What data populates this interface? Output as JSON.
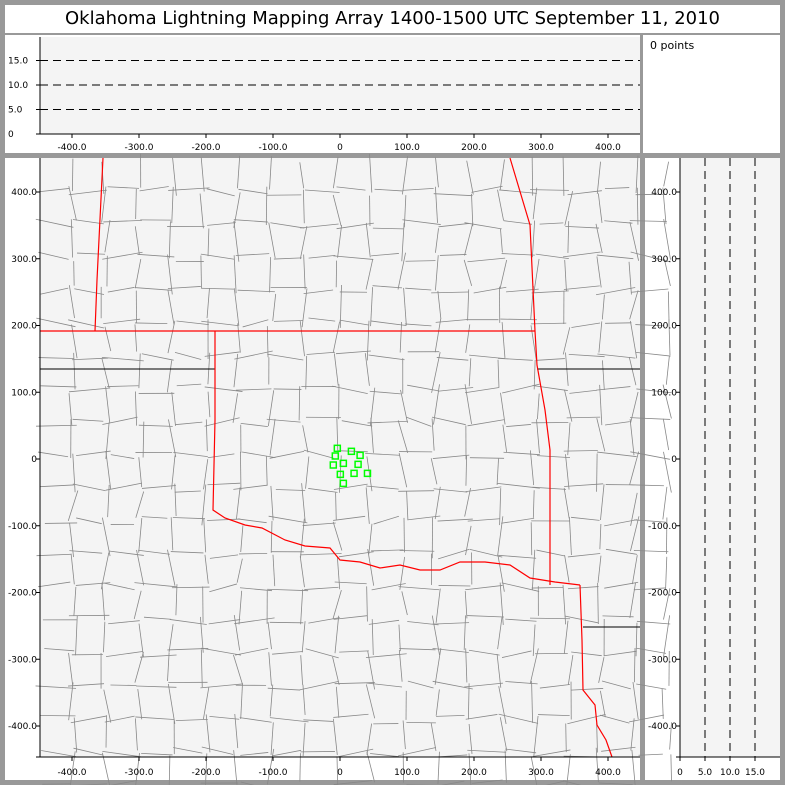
{
  "title": "Oklahoma Lightning Mapping Array   1400-1500 UTC  September 11, 2010",
  "info": {
    "points_label": "0 points"
  },
  "colors": {
    "state_border": "#ff0000",
    "county_border": "#888888",
    "source_marker": "#00ff00",
    "plot_bg": "#f4f4f4"
  },
  "map": {
    "x_range_km": [
      -450,
      450
    ],
    "y_range_km": [
      -450,
      450
    ],
    "x_ticks": [
      "-400.0",
      "-300.0",
      "-200.0",
      "-100.0",
      "0",
      "100.0",
      "200.0",
      "300.0",
      "400.0"
    ],
    "y_ticks": [
      "400.0",
      "300.0",
      "200.0",
      "100.0",
      "0",
      "-100.0",
      "-200.0",
      "-300.0",
      "-400.0"
    ],
    "sources_km": [
      [
        -4,
        16
      ],
      [
        -7,
        4.5
      ],
      [
        17,
        11.5
      ],
      [
        30,
        5.5
      ],
      [
        -10,
        -9
      ],
      [
        5,
        -6.5
      ],
      [
        27,
        -8
      ],
      [
        0.5,
        -23
      ],
      [
        21,
        -21.5
      ],
      [
        41,
        -21.5
      ],
      [
        5,
        -36.5
      ]
    ]
  },
  "altitude_ew": {
    "y_ticks": [
      "0",
      "5.0",
      "10.0",
      "15.0"
    ],
    "x_ticks": [
      "-400.0",
      "-300.0",
      "-200.0",
      "-100.0",
      "0",
      "100.0",
      "200.0",
      "300.0",
      "400.0"
    ]
  },
  "altitude_ns": {
    "x_ticks": [
      "0",
      "5.0",
      "10.0",
      "15.0"
    ],
    "y_ticks": [
      "400.0",
      "300.0",
      "200.0",
      "100.0",
      "0",
      "-100.0",
      "-200.0",
      "-300.0",
      "-400.0"
    ]
  }
}
